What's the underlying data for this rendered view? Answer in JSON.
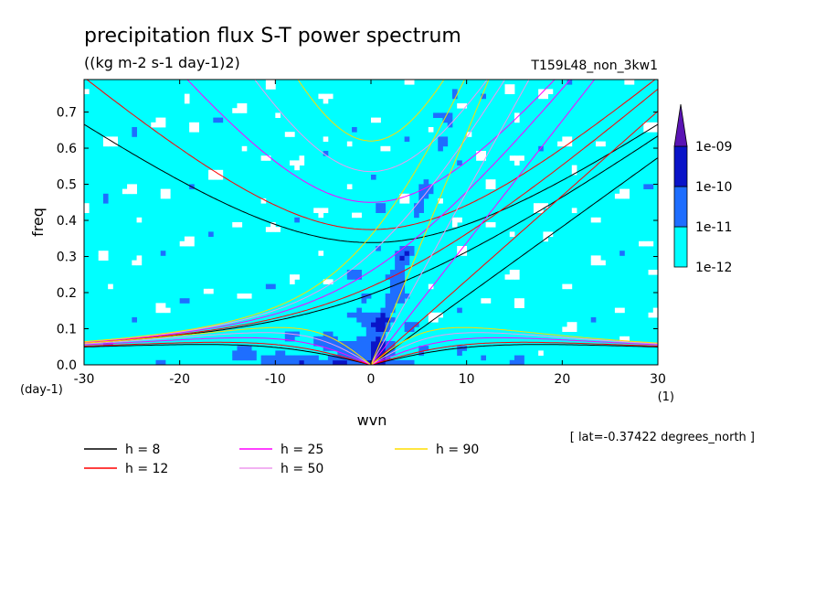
{
  "chart_data": {
    "type": "heatmap",
    "title": "precipitation flux S-T power spectrum",
    "subtitle": "((kg m-2 s-1 day-1)2)",
    "run_label": "T159L48_non_3kw1",
    "xlabel": "wvn",
    "ylabel": "freq",
    "x_unit_label": "(1)",
    "y_unit_label": "(day-1)",
    "xlim": [
      -30,
      30
    ],
    "ylim": [
      0,
      0.79
    ],
    "x_ticks": [
      "-30",
      "-20",
      "-10",
      "0",
      "10",
      "20",
      "30"
    ],
    "y_ticks": [
      "0.0",
      "0.1",
      "0.2",
      "0.3",
      "0.4",
      "0.5",
      "0.6",
      "0.7"
    ],
    "colorbar": {
      "labels": [
        "1e-12",
        "1e-11",
        "1e-10",
        "1e-09"
      ],
      "bands": [
        {
          "range": "< 1e-12",
          "color": "#ffffff"
        },
        {
          "range": "1e-12 - 1e-11",
          "color": "#00ffff"
        },
        {
          "range": "1e-11 - 1e-10",
          "color": "#1e6eff"
        },
        {
          "range": "1e-10 - 1e-09",
          "color": "#0a14c8"
        },
        {
          "range": "> 1e-09",
          "color": "#5a14b4"
        }
      ]
    },
    "dispersion_curves": [
      {
        "label": "h =  8",
        "h": 8,
        "color": "#000000"
      },
      {
        "label": "h = 12",
        "h": 12,
        "color": "#ff0000"
      },
      {
        "label": "h = 25",
        "h": 25,
        "color": "#ff00ff"
      },
      {
        "label": "h = 50",
        "h": 50,
        "color": "#ee99ee"
      },
      {
        "label": "h = 90",
        "h": 90,
        "color": "#ffdd00"
      }
    ],
    "annotation": "[ lat=-0.37422 degrees_north ]"
  }
}
